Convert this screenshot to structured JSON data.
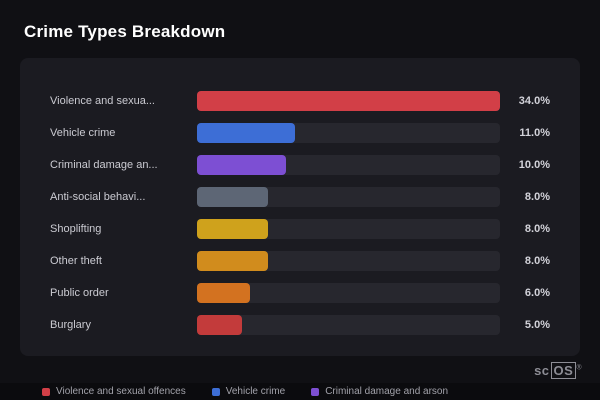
{
  "title": "Crime Types Breakdown",
  "chart_data": {
    "type": "bar",
    "orientation": "horizontal",
    "title": "Crime Types Breakdown",
    "max_value": 34,
    "categories": [
      "Violence and sexua...",
      "Vehicle crime",
      "Criminal damage an...",
      "Anti-social behavi...",
      "Shoplifting",
      "Other theft",
      "Public order",
      "Burglary"
    ],
    "values": [
      34,
      11,
      10,
      8,
      8,
      8,
      6,
      5
    ],
    "value_labels": [
      "34.0%",
      "11.0%",
      "10.0%",
      "8.0%",
      "8.0%",
      "8.0%",
      "6.0%",
      "5.0%"
    ],
    "bar_colors": [
      "#d23f47",
      "#3d6ed6",
      "#7d4fd3",
      "#5d6675",
      "#cfa21c",
      "#d18c1d",
      "#d37220",
      "#c33b3b"
    ],
    "grid": false,
    "legend_position": "bottom"
  },
  "legend": {
    "items": [
      {
        "label": "Violence and sexual offences",
        "color": "#d23f47"
      },
      {
        "label": "Vehicle crime",
        "color": "#3d6ed6"
      },
      {
        "label": "Criminal damage and arson",
        "color": "#7d4fd3"
      }
    ]
  },
  "branding": {
    "logo_sc": "sc",
    "logo_os": "OS",
    "registered": "®"
  }
}
